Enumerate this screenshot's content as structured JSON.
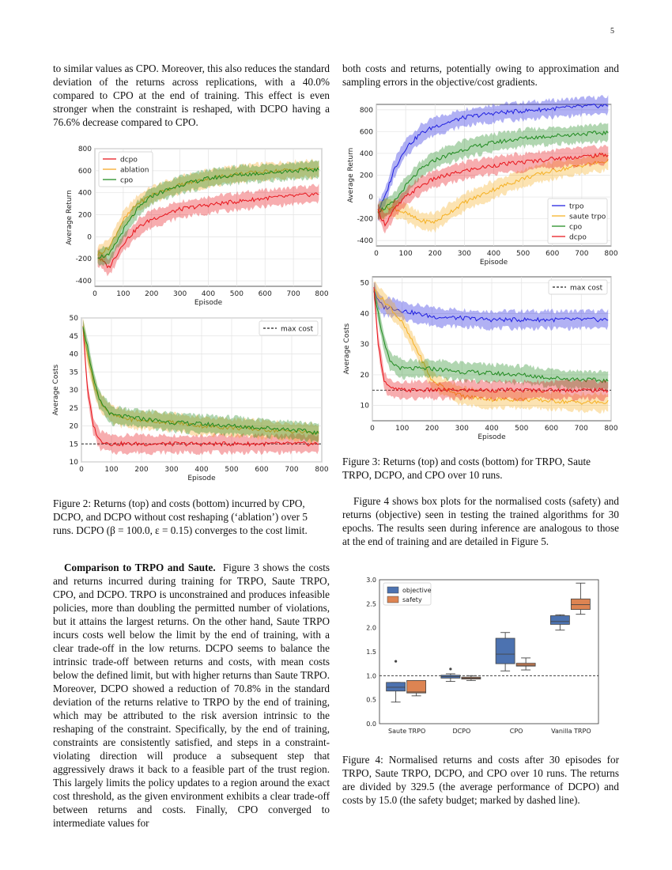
{
  "page_number": "5",
  "left_col": {
    "para1": "to similar values as CPO. Moreover, this also reduces the standard deviation of the returns across replications, with a 40.0% compared to CPO at the end of training. This effect is even stronger when the constraint is reshaped, with DCPO having a 76.6% decrease compared to CPO.",
    "fig2_caption": "Figure 2: Returns (top) and costs (bottom) incurred by CPO, DCPO, and DCPO without cost reshaping (‘ablation’) over 5 runs. DCPO (β = 100.0, ε = 0.15) converges to the cost limit.",
    "section_heading": "Comparison to TRPO and Saute.",
    "para2": "Figure 3 shows the costs and returns incurred during training for TRPO, Saute TRPO, CPO, and DCPO. TRPO is unconstrained and produces infeasible policies, more than doubling the permitted number of violations, but it attains the largest returns. On the other hand, Saute TRPO incurs costs well below the limit by the end of training, with a clear trade-off in the low returns. DCPO seems to balance the intrinsic trade-off between returns and costs, with mean costs below the defined limit, but with higher returns than Saute TRPO. Moreover, DCPO showed a reduction of 70.8% in the standard deviation of the returns relative to TRPO by the end of training, which may be attributed to the risk aversion intrinsic to the reshaping of the constraint. Specifically, by the end of training, constraints are consistently satisfied, and steps in a constraint-violating direction will produce a subsequent step that aggressively draws it back to a feasible part of the trust region. This largely limits the policy updates to a region around the exact cost threshold, as the given environment exhibits a clear trade-off between returns and costs. Finally, CPO converged to intermediate values for"
  },
  "right_col": {
    "para1": "both costs and returns, potentially owing to approximation and sampling errors in the objective/cost gradients.",
    "fig3_caption": "Figure 3: Returns (top) and costs (bottom) for TRPO, Saute TRPO, DCPO, and CPO over 10 runs.",
    "para2": "Figure 4 shows box plots for the normalised costs (safety) and returns (objective) seen in testing the trained algorithms for 30 epochs. The results seen during inference are analogous to those at the end of training and are detailed in Figure 5.",
    "fig4_caption": "Figure 4: Normalised returns and costs after 30 episodes for TRPO, Saute TRPO, DCPO, and CPO over 10 runs. The returns are divided by 329.5 (the average performance of DCPO) and costs by 15.0 (the safety budget; marked by dashed line)."
  },
  "colors": {
    "dcpo": "#e8141b",
    "ablation": "#f5a623",
    "cpo": "#1f8a1f",
    "trpo": "#1f1fe0",
    "saute": "#f5b021",
    "objective": "#4c72b0",
    "safety": "#dd8452"
  },
  "chart_data": [
    {
      "id": "fig2-returns",
      "type": "line",
      "xlabel": "Episode",
      "ylabel": "Average Return",
      "xlim": [
        0,
        800
      ],
      "ylim": [
        -450,
        800
      ],
      "xticks": [
        0,
        100,
        200,
        300,
        400,
        500,
        600,
        700,
        800
      ],
      "yticks": [
        -400,
        -200,
        0,
        200,
        400,
        600,
        800
      ],
      "grid": true,
      "legend": "top-left",
      "x": [
        10,
        50,
        100,
        150,
        200,
        300,
        400,
        500,
        600,
        700,
        790
      ],
      "series": [
        {
          "name": "dcpo",
          "values": [
            -180,
            -280,
            -60,
            80,
            160,
            250,
            290,
            320,
            350,
            370,
            390
          ]
        },
        {
          "name": "ablation",
          "values": [
            -160,
            -100,
            150,
            300,
            380,
            470,
            530,
            570,
            590,
            610,
            620
          ]
        },
        {
          "name": "cpo",
          "values": [
            -180,
            -170,
            60,
            250,
            370,
            470,
            530,
            560,
            580,
            600,
            610
          ]
        }
      ]
    },
    {
      "id": "fig2-costs",
      "type": "line",
      "xlabel": "Episode",
      "ylabel": "Average Costs",
      "xlim": [
        0,
        800
      ],
      "ylim": [
        10,
        50
      ],
      "xticks": [
        0,
        100,
        200,
        300,
        400,
        500,
        600,
        700,
        800
      ],
      "yticks": [
        10,
        15,
        20,
        25,
        30,
        35,
        40,
        45,
        50
      ],
      "grid": true,
      "legend": "top-right",
      "threshold": 15,
      "threshold_label": "max cost",
      "x": [
        5,
        20,
        40,
        60,
        100,
        150,
        200,
        300,
        400,
        500,
        600,
        700,
        790
      ],
      "series": [
        {
          "name": "dcpo",
          "values": [
            48,
            30,
            20,
            16,
            15,
            15,
            15,
            15,
            15,
            15,
            15,
            15,
            15
          ]
        },
        {
          "name": "ablation",
          "values": [
            48,
            40,
            32,
            27,
            23,
            22,
            21.5,
            21,
            20,
            19.5,
            19,
            18.5,
            18
          ]
        },
        {
          "name": "cpo",
          "values": [
            48,
            42,
            33,
            27,
            23,
            22.5,
            22,
            21,
            20.5,
            20,
            19.5,
            19,
            18
          ]
        }
      ]
    },
    {
      "id": "fig3-returns",
      "type": "line",
      "xlabel": "Episode",
      "ylabel": "Average Return",
      "xlim": [
        0,
        800
      ],
      "ylim": [
        -450,
        850
      ],
      "xticks": [
        0,
        100,
        200,
        300,
        400,
        500,
        600,
        700,
        800
      ],
      "yticks": [
        -400,
        -200,
        0,
        200,
        400,
        600,
        800
      ],
      "grid": true,
      "legend": "bottom-right",
      "x": [
        5,
        30,
        60,
        100,
        150,
        200,
        300,
        400,
        500,
        600,
        700,
        790
      ],
      "series": [
        {
          "name": "trpo",
          "values": [
            -130,
            0,
            250,
            450,
            580,
            650,
            730,
            770,
            790,
            810,
            830,
            840
          ]
        },
        {
          "name": "saute trpo",
          "values": [
            -130,
            -100,
            -100,
            -150,
            -220,
            -230,
            -50,
            70,
            170,
            240,
            290,
            330
          ]
        },
        {
          "name": "cpo",
          "values": [
            -130,
            -100,
            -50,
            100,
            250,
            340,
            440,
            500,
            540,
            560,
            580,
            590
          ]
        },
        {
          "name": "dcpo",
          "values": [
            -130,
            -250,
            -120,
            0,
            100,
            170,
            240,
            290,
            320,
            350,
            370,
            390
          ]
        }
      ]
    },
    {
      "id": "fig3-costs",
      "type": "line",
      "xlabel": "Episode",
      "ylabel": "Average Costs",
      "xlim": [
        0,
        800
      ],
      "ylim": [
        5,
        52
      ],
      "xticks": [
        0,
        100,
        200,
        300,
        400,
        500,
        600,
        700,
        800
      ],
      "yticks": [
        10,
        20,
        30,
        40,
        50
      ],
      "grid": true,
      "legend": "top-right",
      "threshold": 15,
      "threshold_label": "max cost",
      "x": [
        5,
        20,
        40,
        60,
        100,
        150,
        200,
        300,
        400,
        500,
        600,
        700,
        790
      ],
      "series": [
        {
          "name": "trpo",
          "values": [
            48,
            44,
            42,
            42,
            41,
            40,
            39,
            38.5,
            38,
            38,
            38,
            38,
            38
          ]
        },
        {
          "name": "saute trpo",
          "values": [
            48,
            46,
            44,
            42,
            37,
            28,
            18,
            13,
            12,
            12,
            11.5,
            11,
            11
          ]
        },
        {
          "name": "cpo",
          "values": [
            48,
            40,
            30,
            24,
            22,
            22,
            22,
            21,
            20.5,
            20,
            19,
            18.5,
            18
          ]
        },
        {
          "name": "dcpo",
          "values": [
            48,
            30,
            18,
            15.5,
            15,
            15,
            15,
            15,
            15,
            15,
            15,
            15,
            15
          ]
        }
      ]
    },
    {
      "id": "fig4-box",
      "type": "box",
      "categories": [
        "Saute TRPO",
        "DCPO",
        "CPO",
        "Vanilla TRPO"
      ],
      "ylim": [
        0.0,
        3.0
      ],
      "yticks": [
        "0.0",
        "0.5",
        "1.0",
        "1.5",
        "2.0",
        "2.5",
        "3.0"
      ],
      "legend": "top-left",
      "threshold": 1.0,
      "series": [
        {
          "name": "objective",
          "boxes": [
            {
              "q1": 0.68,
              "median": 0.76,
              "q3": 0.86,
              "wlo": 0.45,
              "whi": 0.86,
              "outliers": [
                1.3
              ]
            },
            {
              "q1": 0.95,
              "median": 0.98,
              "q3": 1.01,
              "wlo": 0.88,
              "whi": 1.04,
              "outliers": [
                1.14
              ]
            },
            {
              "q1": 1.25,
              "median": 1.45,
              "q3": 1.78,
              "wlo": 1.1,
              "whi": 1.9,
              "outliers": []
            },
            {
              "q1": 2.07,
              "median": 2.13,
              "q3": 2.25,
              "wlo": 1.95,
              "whi": 2.27,
              "outliers": []
            }
          ]
        },
        {
          "name": "safety",
          "boxes": [
            {
              "q1": 0.64,
              "median": 0.66,
              "q3": 0.9,
              "wlo": 0.58,
              "whi": 0.9,
              "outliers": []
            },
            {
              "q1": 0.93,
              "median": 0.95,
              "q3": 0.97,
              "wlo": 0.9,
              "whi": 1.0,
              "outliers": []
            },
            {
              "q1": 1.2,
              "median": 1.22,
              "q3": 1.26,
              "wlo": 1.12,
              "whi": 1.37,
              "outliers": []
            },
            {
              "q1": 2.38,
              "median": 2.48,
              "q3": 2.6,
              "wlo": 2.28,
              "whi": 2.93,
              "outliers": []
            }
          ]
        }
      ]
    }
  ]
}
